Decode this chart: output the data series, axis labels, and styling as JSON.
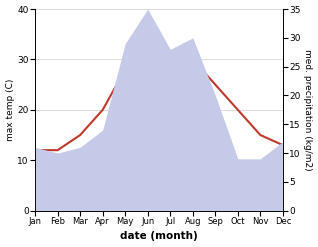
{
  "months": [
    "Jan",
    "Feb",
    "Mar",
    "Apr",
    "May",
    "Jun",
    "Jul",
    "Aug",
    "Sep",
    "Oct",
    "Nov",
    "Dec"
  ],
  "temperature": [
    12,
    12,
    15,
    20,
    28,
    32,
    31,
    30,
    25,
    20,
    15,
    13
  ],
  "precipitation": [
    11,
    10,
    11,
    14,
    29,
    35,
    28,
    30,
    20,
    9,
    9,
    12
  ],
  "temp_color": "#c0392b",
  "precip_fill_color": "#c5cae9",
  "temp_ylim": [
    0,
    40
  ],
  "precip_ylim": [
    0,
    35
  ],
  "temp_yticks": [
    0,
    10,
    20,
    30,
    40
  ],
  "precip_yticks": [
    0,
    5,
    10,
    15,
    20,
    25,
    30,
    35
  ],
  "xlabel": "date (month)",
  "ylabel_left": "max temp (C)",
  "ylabel_right": "med. precipitation (kg/m2)",
  "background_color": "#ffffff"
}
